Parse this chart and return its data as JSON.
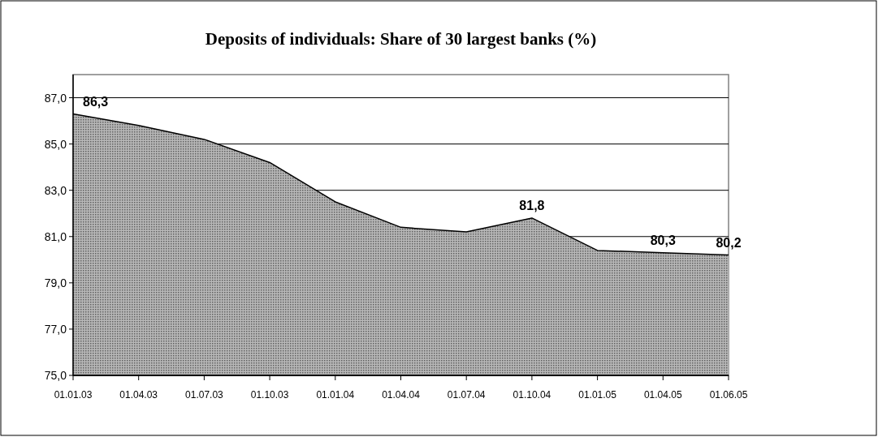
{
  "chart_data": {
    "type": "area",
    "title": "Deposits of individuals: Share of 30 largest banks (%)",
    "categories": [
      "01.01.03",
      "01.04.03",
      "01.07.03",
      "01.10.03",
      "01.01.04",
      "01.04.04",
      "01.07.04",
      "01.10.04",
      "01.01.05",
      "01.04.05",
      "01.06.05"
    ],
    "series": [
      {
        "color": "#b8b8b8",
        "values": [
          86.3,
          85.8,
          85.2,
          84.2,
          82.5,
          81.4,
          81.2,
          81.8,
          80.4,
          80.3,
          80.2
        ],
        "value_labels": [
          "86,3",
          null,
          null,
          null,
          null,
          null,
          null,
          "81,8",
          null,
          "80,3",
          "80,2"
        ]
      }
    ],
    "ylim": [
      75,
      88
    ],
    "yticks": [
      {
        "value": 75,
        "label": "75,0"
      },
      {
        "value": 77,
        "label": "77,0"
      },
      {
        "value": 79,
        "label": "79,0"
      },
      {
        "value": 81,
        "label": "81,0"
      },
      {
        "value": 83,
        "label": "83,0"
      },
      {
        "value": 85,
        "label": "85,0"
      },
      {
        "value": 87,
        "label": "87,0"
      }
    ],
    "grid": "y"
  }
}
